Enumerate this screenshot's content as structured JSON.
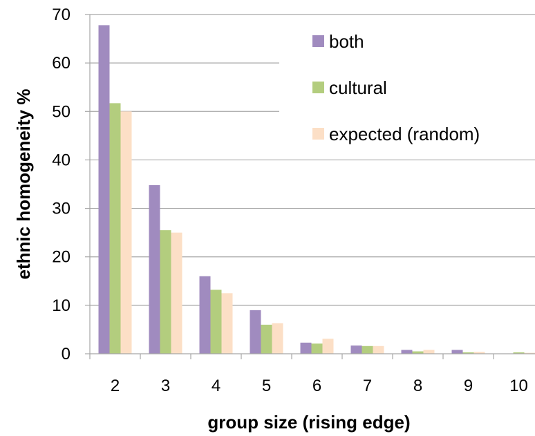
{
  "chart_data": {
    "type": "bar",
    "xlabel": "group size (rising edge)",
    "ylabel": "ethnic homogeneity %",
    "categories": [
      "2",
      "3",
      "4",
      "5",
      "6",
      "7",
      "8",
      "9",
      "10"
    ],
    "ylim": [
      0,
      70
    ],
    "yticks": [
      0,
      10,
      20,
      30,
      40,
      50,
      60,
      70
    ],
    "grid": "horizontal",
    "legend_position": "top-right",
    "series": [
      {
        "name": "both",
        "color": "#a08bbf",
        "values": [
          67.8,
          34.8,
          16.0,
          9.0,
          2.3,
          1.7,
          0.8,
          0.8,
          0.0
        ]
      },
      {
        "name": "cultural",
        "color": "#b3cd7e",
        "values": [
          51.7,
          25.5,
          13.2,
          6.0,
          2.1,
          1.6,
          0.5,
          0.3,
          0.3
        ]
      },
      {
        "name": "expected (random)",
        "color": "#fcdfc6",
        "values": [
          50.0,
          25.0,
          12.5,
          6.3,
          3.1,
          1.6,
          0.8,
          0.4,
          0.2
        ]
      }
    ]
  }
}
